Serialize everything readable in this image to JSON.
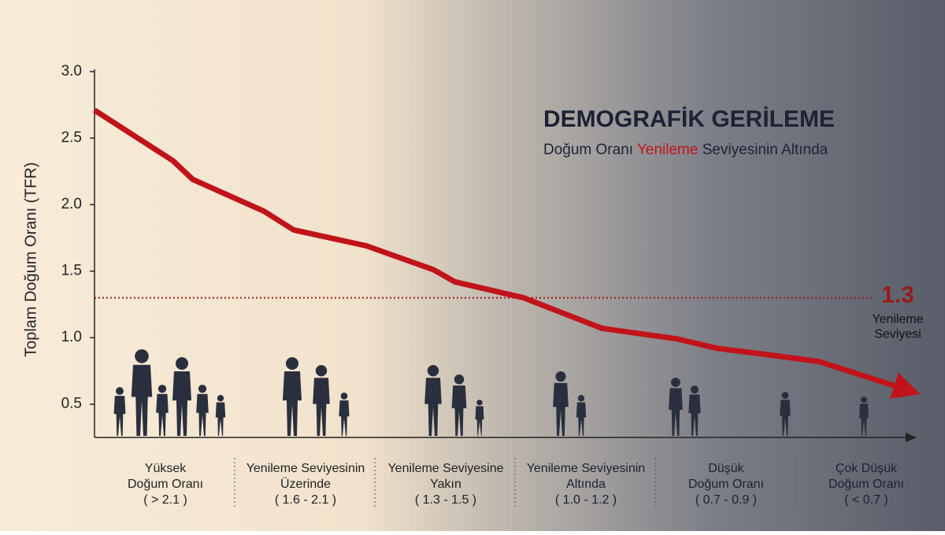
{
  "chart_data": {
    "type": "line",
    "title": "DEMOGRAFİK GERİLEME",
    "subtitle_parts": [
      "Doğum Oranı ",
      "Yenileme",
      " Seviyesinin Altında"
    ],
    "y_label": "Toplam Doğum Oranı (TFR)",
    "ylim": [
      0.25,
      3.0
    ],
    "yticks": [
      {
        "value": 0.5,
        "label": "0.5"
      },
      {
        "value": 1.0,
        "label": "1.0"
      },
      {
        "value": 1.5,
        "label": "1.5"
      },
      {
        "value": 2.0,
        "label": "2.0"
      },
      {
        "value": 2.5,
        "label": "2.5"
      },
      {
        "value": 3.0,
        "label": "3.0"
      }
    ],
    "xlim": [
      0,
      5.87
    ],
    "x": [
      0,
      0.56,
      0.7,
      1.21,
      1.42,
      1.94,
      2.42,
      2.57,
      3.06,
      3.62,
      4.16,
      4.44,
      4.89,
      5.17,
      5.76
    ],
    "series": [
      {
        "name": "TFR",
        "color": "#c0141a",
        "values": [
          2.71,
          2.33,
          2.19,
          1.95,
          1.81,
          1.69,
          1.51,
          1.42,
          1.3,
          1.07,
          0.99,
          0.92,
          0.86,
          0.82,
          0.62
        ]
      }
    ],
    "threshold": {
      "value": 1.3,
      "label": "1.3",
      "lines": [
        "Yenileme",
        "Seviyesi"
      ],
      "color": "#9a1a1a"
    },
    "groups": [
      [
        "Yüksek",
        "Doğum Oranı",
        "( > 2.1 )"
      ],
      [
        "Yenileme Seviyesinin",
        "Üzerinde",
        "( 1.6 - 2.1 )"
      ],
      [
        "Yenileme Seviyesine",
        "Yakın",
        "( 1.3 - 1.5 )"
      ],
      [
        "Yenileme Seviyesinin",
        "Altında",
        "( 1.0 - 1.2 )"
      ],
      [
        "Düşük",
        "Doğum Oranı",
        "( 0.7 - 0.9 )"
      ],
      [
        "Çok Düşük",
        "Doğum Oranı",
        "( < 0.7 )"
      ]
    ]
  }
}
